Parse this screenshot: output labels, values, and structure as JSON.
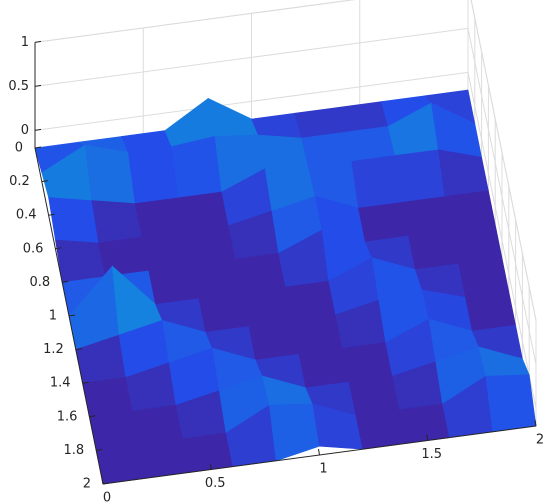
{
  "chart_data": {
    "type": "surface",
    "x": [
      0,
      0.2,
      0.4,
      0.6,
      0.8,
      1,
      1.2,
      1.4,
      1.6,
      1.8,
      2
    ],
    "y": [
      0,
      0.2,
      0.4,
      0.6,
      0.8,
      1,
      1.2,
      1.4,
      1.6,
      1.8,
      2
    ],
    "z": [
      [
        -0.2,
        -0.2,
        -0.2,
        -0.2,
        0.1,
        -0.2,
        -0.2,
        -0.2,
        -0.2,
        -0.2,
        -0.2
      ],
      [
        -0.1,
        0.15,
        0.0,
        0.0,
        0.05,
        0.0,
        -0.1,
        -0.1,
        -0.1,
        0.1,
        -0.2
      ],
      [
        0.0,
        -0.1,
        -0.2,
        -0.2,
        -0.2,
        0.0,
        -0.05,
        -0.05,
        -0.05,
        -0.05,
        -0.2
      ],
      [
        -0.1,
        -0.2,
        -0.2,
        -0.2,
        -0.2,
        -0.1,
        0.0,
        -0.2,
        -0.2,
        -0.2,
        -0.2
      ],
      [
        -0.2,
        -0.2,
        -0.2,
        -0.2,
        -0.2,
        -0.2,
        0.0,
        -0.2,
        -0.2,
        -0.2,
        -0.2
      ],
      [
        -0.2,
        0.3,
        -0.2,
        -0.2,
        -0.2,
        -0.2,
        -0.2,
        0.0,
        -0.2,
        -0.2,
        -0.2
      ],
      [
        -0.2,
        -0.1,
        0.0,
        -0.2,
        -0.2,
        -0.2,
        -0.2,
        -0.1,
        -0.05,
        -0.2,
        -0.2
      ],
      [
        -0.2,
        -0.2,
        -0.1,
        0.0,
        -0.2,
        -0.2,
        -0.2,
        -0.2,
        0.0,
        -0.2,
        -0.2
      ],
      [
        -0.2,
        -0.2,
        -0.2,
        -0.1,
        0.0,
        -0.2,
        -0.2,
        -0.2,
        -0.1,
        0.0,
        -0.2
      ],
      [
        -0.2,
        -0.2,
        -0.2,
        -0.2,
        0.05,
        0.0,
        -0.2,
        -0.2,
        -0.2,
        0.05,
        0.0
      ],
      [
        -0.2,
        -0.2,
        -0.2,
        -0.2,
        -0.2,
        -0.1,
        -0.2,
        -0.2,
        -0.2,
        -0.2,
        -0.2
      ]
    ],
    "xlim": [
      0,
      2
    ],
    "ylim": [
      0,
      2
    ],
    "zlim": [
      -0.2,
      1
    ],
    "xticks": [
      0,
      0.5,
      1,
      1.5,
      2
    ],
    "yticks": [
      0,
      0.2,
      0.4,
      0.6,
      0.8,
      1,
      1.2,
      1.4,
      1.6,
      1.8,
      2
    ],
    "zticks": [
      0,
      0.5,
      1
    ],
    "grid": true
  }
}
